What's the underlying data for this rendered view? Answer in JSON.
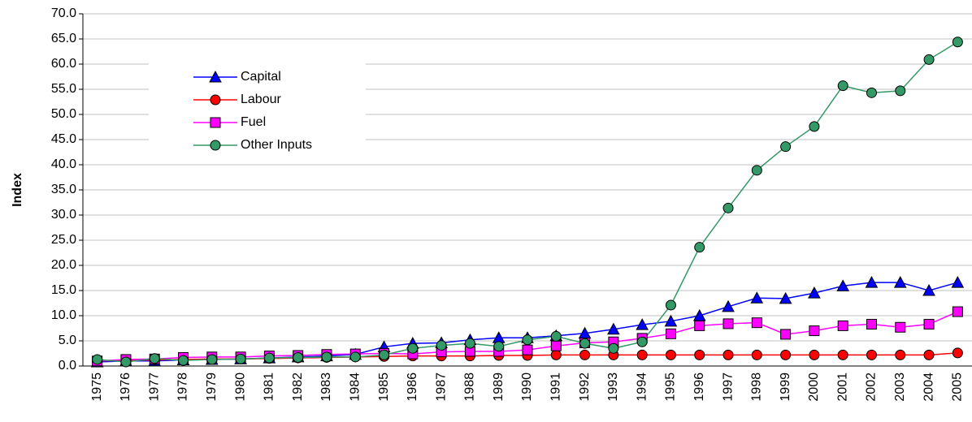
{
  "chart_data": {
    "type": "line",
    "y_label": "Index",
    "categories": [
      "1975",
      "1976",
      "1977",
      "1978",
      "1979",
      "1980",
      "1981",
      "1982",
      "1983",
      "1984",
      "1985",
      "1986",
      "1987",
      "1988",
      "1989",
      "1990",
      "1991",
      "1992",
      "1993",
      "1994",
      "1995",
      "1996",
      "1997",
      "1998",
      "1999",
      "2000",
      "2001",
      "2002",
      "2003",
      "2004",
      "2005"
    ],
    "series": [
      {
        "name": "Capital",
        "color": "#0000ff",
        "marker": "triangle",
        "values": [
          0.8,
          1.0,
          1.0,
          1.2,
          1.3,
          1.4,
          1.6,
          1.8,
          2.0,
          2.3,
          3.8,
          4.5,
          4.6,
          5.2,
          5.6,
          5.6,
          6.0,
          6.5,
          7.3,
          8.2,
          8.9,
          10.0,
          11.8,
          13.5,
          13.4,
          14.5,
          15.9,
          16.6,
          16.6,
          15.0,
          16.6
        ]
      },
      {
        "name": "Labour",
        "color": "#ff0000",
        "marker": "circle",
        "values": [
          1.0,
          1.1,
          1.2,
          1.3,
          1.4,
          1.4,
          1.5,
          1.6,
          1.7,
          1.8,
          1.9,
          2.0,
          2.0,
          2.0,
          2.1,
          2.1,
          2.2,
          2.2,
          2.2,
          2.2,
          2.2,
          2.2,
          2.2,
          2.2,
          2.2,
          2.2,
          2.2,
          2.2,
          2.2,
          2.2,
          2.6
        ]
      },
      {
        "name": "Fuel",
        "color": "#ff00ff",
        "marker": "square",
        "values": [
          1.0,
          1.3,
          1.4,
          1.7,
          1.8,
          1.8,
          2.0,
          2.1,
          2.3,
          2.4,
          2.5,
          2.4,
          2.8,
          2.9,
          2.9,
          3.2,
          4.0,
          4.6,
          4.8,
          5.5,
          6.4,
          8.0,
          8.4,
          8.6,
          6.3,
          7.0,
          8.0,
          8.3,
          7.7,
          8.3,
          10.8
        ]
      },
      {
        "name": "Other Inputs",
        "color": "#339966",
        "marker": "circle",
        "values": [
          1.3,
          0.8,
          1.5,
          1.1,
          1.3,
          1.4,
          1.6,
          1.7,
          1.8,
          1.8,
          2.2,
          3.5,
          4.1,
          4.5,
          3.9,
          5.2,
          5.9,
          4.5,
          3.5,
          4.8,
          12.1,
          23.6,
          31.4,
          38.9,
          43.6,
          47.6,
          55.7,
          54.3,
          54.7,
          60.9,
          64.4
        ]
      }
    ],
    "ylim": [
      0,
      70
    ],
    "yticks": [
      {
        "value": 0,
        "label": "0.0"
      },
      {
        "value": 5,
        "label": "5.0"
      },
      {
        "value": 10,
        "label": "10.0"
      },
      {
        "value": 15,
        "label": "15.0"
      },
      {
        "value": 20,
        "label": "20.0"
      },
      {
        "value": 25,
        "label": "25.0"
      },
      {
        "value": 30,
        "label": "30.0"
      },
      {
        "value": 35,
        "label": "35.0"
      },
      {
        "value": 40,
        "label": "40.0"
      },
      {
        "value": 45,
        "label": "45.0"
      },
      {
        "value": 50,
        "label": "50.0"
      },
      {
        "value": 55,
        "label": "55.0"
      },
      {
        "value": 60,
        "label": "60.0"
      },
      {
        "value": 65,
        "label": "65.0"
      },
      {
        "value": 70,
        "label": "70.0"
      }
    ],
    "grid": true
  }
}
